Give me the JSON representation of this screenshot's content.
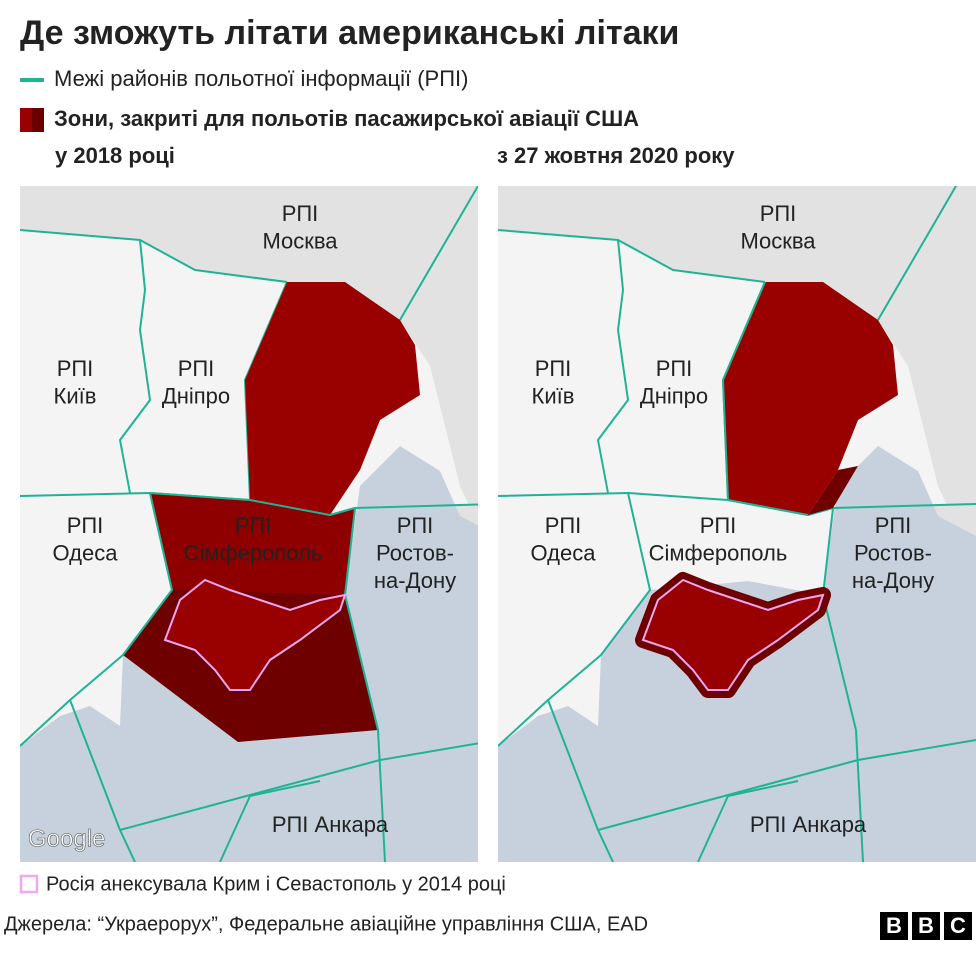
{
  "title": "Де зможуть літати американські літаки",
  "legend": {
    "fir_boundaries": "Межі районів польотної інформації (РПІ)",
    "closed_zones": "Зони, закриті для польотів пасажирської авіації США"
  },
  "panels": [
    {
      "label": "у 2018 році",
      "labels": [
        [
          "РПІ",
          "Москва"
        ],
        [
          "РПІ",
          "Київ"
        ],
        [
          "РПІ",
          "Дніпро"
        ],
        [
          "РПІ",
          "Одеса"
        ],
        [
          "РПІ",
          "Сімферополь"
        ],
        [
          "РПІ",
          "Ростов-",
          "на-Дону"
        ],
        [
          "РПІ Анкара"
        ]
      ],
      "attribution": "Google"
    },
    {
      "label": "з 27 жовтня 2020 року",
      "labels": [
        [
          "РПІ",
          "Москва"
        ],
        [
          "РПІ",
          "Київ"
        ],
        [
          "РПІ",
          "Дніпро"
        ],
        [
          "РПІ",
          "Одеса"
        ],
        [
          "РПІ",
          "Сімферополь"
        ],
        [
          "РПІ",
          "Ростов-",
          "на-Дону"
        ],
        [
          "РПІ Анкара"
        ]
      ]
    }
  ],
  "footnote": "Росія анексувала Крим і Севастополь у 2014 році",
  "source": "Джерела: “Украерорух”, Федеральне авіаційне управління США, EAD",
  "logo": [
    "B",
    "B",
    "C"
  ]
}
